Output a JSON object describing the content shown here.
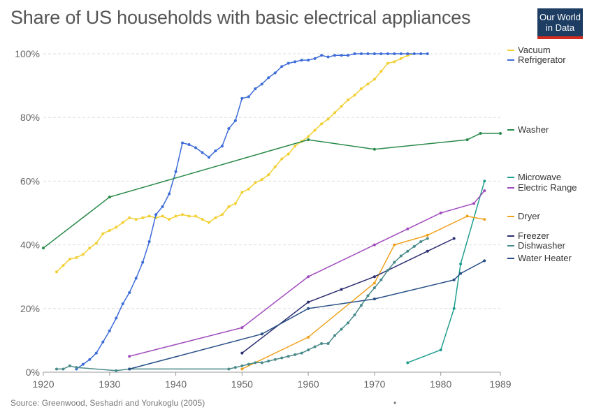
{
  "header": {
    "title": "Share of US households with basic electrical appliances",
    "logo_line1": "Our World",
    "logo_line2": "in Data"
  },
  "footer": {
    "source": "Source: Greenwood, Seshadri and Yorukoglu (2005)",
    "dot": "•"
  },
  "chart_data": {
    "type": "line",
    "title": "Share of US households with basic electrical appliances",
    "xlabel": "",
    "ylabel": "",
    "xlim": [
      1920,
      1989
    ],
    "ylim": [
      0,
      100
    ],
    "x_ticks": [
      1920,
      1930,
      1940,
      1950,
      1960,
      1970,
      1980,
      1989
    ],
    "y_ticks": [
      {
        "value": 0,
        "label": "0%"
      },
      {
        "value": 20,
        "label": "20%"
      },
      {
        "value": 40,
        "label": "40%"
      },
      {
        "value": 60,
        "label": "60%"
      },
      {
        "value": 80,
        "label": "80%"
      },
      {
        "value": 100,
        "label": "100%"
      }
    ],
    "grid": "horizontal dashed",
    "legend": "right",
    "series": [
      {
        "name": "Vacuum",
        "color": "#f2d034",
        "points": [
          [
            1922,
            31.5
          ],
          [
            1923,
            33.5
          ],
          [
            1924,
            35.5
          ],
          [
            1925,
            36
          ],
          [
            1926,
            37
          ],
          [
            1927,
            39
          ],
          [
            1928,
            40.5
          ],
          [
            1929,
            43.5
          ],
          [
            1930,
            44.5
          ],
          [
            1931,
            45.5
          ],
          [
            1932,
            47
          ],
          [
            1933,
            48.5
          ],
          [
            1934,
            48
          ],
          [
            1935,
            48.5
          ],
          [
            1936,
            49
          ],
          [
            1937,
            48.5
          ],
          [
            1938,
            49
          ],
          [
            1939,
            48
          ],
          [
            1940,
            49
          ],
          [
            1941,
            49.5
          ],
          [
            1942,
            49
          ],
          [
            1943,
            49
          ],
          [
            1944,
            48
          ],
          [
            1945,
            47
          ],
          [
            1946,
            48.5
          ],
          [
            1947,
            49.5
          ],
          [
            1948,
            52
          ],
          [
            1949,
            53
          ],
          [
            1950,
            56.5
          ],
          [
            1951,
            57.5
          ],
          [
            1952,
            59.5
          ],
          [
            1953,
            60.5
          ],
          [
            1954,
            62
          ],
          [
            1955,
            64.5
          ],
          [
            1956,
            67
          ],
          [
            1957,
            68.5
          ],
          [
            1958,
            71
          ],
          [
            1959,
            72.5
          ],
          [
            1960,
            74
          ],
          [
            1961,
            76
          ],
          [
            1962,
            78
          ],
          [
            1963,
            79.5
          ],
          [
            1964,
            81.5
          ],
          [
            1965,
            83.5
          ],
          [
            1966,
            85.5
          ],
          [
            1967,
            87
          ],
          [
            1968,
            89
          ],
          [
            1969,
            90.5
          ],
          [
            1970,
            92
          ],
          [
            1971,
            94.5
          ],
          [
            1972,
            97
          ],
          [
            1973,
            97.5
          ],
          [
            1974,
            98.5
          ],
          [
            1975,
            99.5
          ],
          [
            1976,
            100
          ]
        ]
      },
      {
        "name": "Refrigerator",
        "color": "#3d6cd8",
        "points": [
          [
            1925,
            1
          ],
          [
            1926,
            2.5
          ],
          [
            1927,
            4
          ],
          [
            1928,
            6
          ],
          [
            1929,
            9.5
          ],
          [
            1930,
            13
          ],
          [
            1931,
            17
          ],
          [
            1932,
            21.5
          ],
          [
            1933,
            25
          ],
          [
            1934,
            29.5
          ],
          [
            1935,
            34.5
          ],
          [
            1936,
            41
          ],
          [
            1937,
            49.5
          ],
          [
            1938,
            52
          ],
          [
            1939,
            56
          ],
          [
            1940,
            63
          ],
          [
            1941,
            72
          ],
          [
            1942,
            71.5
          ],
          [
            1943,
            70.5
          ],
          [
            1944,
            69
          ],
          [
            1945,
            67.5
          ],
          [
            1946,
            69.5
          ],
          [
            1947,
            71
          ],
          [
            1948,
            76.5
          ],
          [
            1949,
            79
          ],
          [
            1950,
            86
          ],
          [
            1951,
            86.5
          ],
          [
            1952,
            89
          ],
          [
            1953,
            90.5
          ],
          [
            1954,
            92.5
          ],
          [
            1955,
            94
          ],
          [
            1956,
            96
          ],
          [
            1957,
            97
          ],
          [
            1958,
            97.5
          ],
          [
            1959,
            98
          ],
          [
            1960,
            98
          ],
          [
            1961,
            98.5
          ],
          [
            1962,
            99.5
          ],
          [
            1963,
            99
          ],
          [
            1964,
            99.5
          ],
          [
            1965,
            99.5
          ],
          [
            1966,
            99.5
          ],
          [
            1967,
            100
          ],
          [
            1968,
            100
          ],
          [
            1969,
            100
          ],
          [
            1970,
            100
          ],
          [
            1971,
            100
          ],
          [
            1972,
            100
          ],
          [
            1973,
            100
          ],
          [
            1974,
            100
          ],
          [
            1975,
            100
          ],
          [
            1976,
            100
          ],
          [
            1977,
            100
          ],
          [
            1978,
            100
          ]
        ]
      },
      {
        "name": "Washer",
        "color": "#2a8a4a",
        "points": [
          [
            1920,
            39
          ],
          [
            1930,
            55
          ],
          [
            1960,
            73
          ],
          [
            1970,
            70
          ],
          [
            1984,
            73
          ],
          [
            1986,
            75
          ],
          [
            1989,
            75
          ]
        ]
      },
      {
        "name": "Microwave",
        "color": "#1f9e8e",
        "points": [
          [
            1975,
            3
          ],
          [
            1980,
            7
          ],
          [
            1982,
            20
          ],
          [
            1983,
            34
          ],
          [
            1986.6,
            60
          ]
        ]
      },
      {
        "name": "Electric Range",
        "color": "#a04bbd",
        "points": [
          [
            1933,
            5
          ],
          [
            1950,
            14
          ],
          [
            1960,
            30
          ],
          [
            1970,
            40
          ],
          [
            1975,
            45
          ],
          [
            1980,
            50
          ],
          [
            1985,
            53
          ],
          [
            1986.6,
            57
          ]
        ]
      },
      {
        "name": "Dryer",
        "color": "#f0a21f",
        "points": [
          [
            1950,
            1
          ],
          [
            1960,
            11
          ],
          [
            1970,
            28
          ],
          [
            1973,
            40
          ],
          [
            1978,
            43
          ],
          [
            1984,
            49
          ],
          [
            1986.6,
            48
          ]
        ]
      },
      {
        "name": "Freezer",
        "color": "#2c2e70",
        "points": [
          [
            1950,
            6
          ],
          [
            1960,
            22
          ],
          [
            1965,
            26
          ],
          [
            1970,
            30
          ],
          [
            1978,
            38
          ],
          [
            1982,
            42
          ]
        ]
      },
      {
        "name": "Dishwasher",
        "color": "#4a8a8a",
        "points": [
          [
            1922,
            1
          ],
          [
            1923,
            1
          ],
          [
            1924,
            2
          ],
          [
            1925,
            1.5
          ],
          [
            1931,
            0.5
          ],
          [
            1933,
            1
          ],
          [
            1948,
            1
          ],
          [
            1949,
            1.5
          ],
          [
            1950,
            2
          ],
          [
            1951,
            2.5
          ],
          [
            1952,
            3
          ],
          [
            1953,
            3
          ],
          [
            1954,
            3.5
          ],
          [
            1955,
            4
          ],
          [
            1956,
            4.5
          ],
          [
            1957,
            5
          ],
          [
            1958,
            5.5
          ],
          [
            1959,
            6
          ],
          [
            1960,
            7
          ],
          [
            1961,
            8
          ],
          [
            1962,
            9
          ],
          [
            1963,
            9
          ],
          [
            1964,
            11.5
          ],
          [
            1965,
            13.5
          ],
          [
            1966,
            15.5
          ],
          [
            1967,
            18
          ],
          [
            1968,
            21
          ],
          [
            1969,
            24
          ],
          [
            1970,
            26.5
          ],
          [
            1971,
            29
          ],
          [
            1972,
            32
          ],
          [
            1973,
            34.5
          ],
          [
            1974,
            36.5
          ],
          [
            1975,
            38
          ],
          [
            1976,
            39.5
          ],
          [
            1977,
            41
          ],
          [
            1978,
            42
          ]
        ]
      },
      {
        "name": "Water Heater",
        "color": "#274f86",
        "points": [
          [
            1933,
            1
          ],
          [
            1953,
            12
          ],
          [
            1960,
            20
          ],
          [
            1970,
            23
          ],
          [
            1982,
            29
          ],
          [
            1983,
            31
          ],
          [
            1986.6,
            35
          ]
        ]
      }
    ],
    "legend_order": [
      "Vacuum",
      "Refrigerator",
      "Washer",
      "Microwave",
      "Electric Range",
      "Dryer",
      "Freezer",
      "Dishwasher",
      "Water Heater"
    ]
  }
}
